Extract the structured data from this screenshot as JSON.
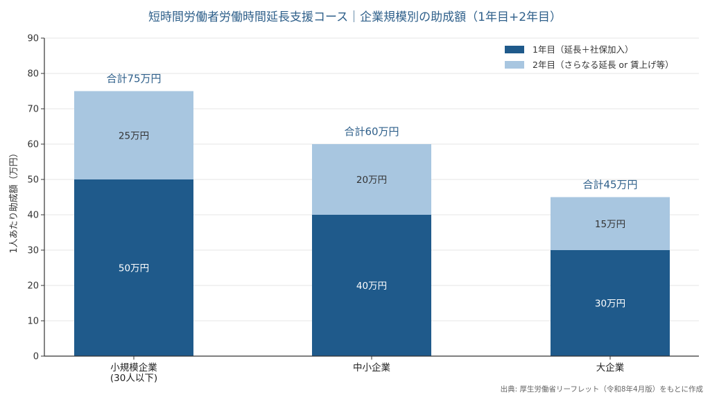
{
  "chart_data": {
    "type": "bar",
    "stacked": true,
    "title": "短時間労働者労働時間延長支援コース｜企業規模別の助成額（1年目+2年目）",
    "ylabel": "1人あたり助成額（万円）",
    "xlabel": "",
    "ylim": [
      0,
      90
    ],
    "yticks": [
      0,
      10,
      20,
      30,
      40,
      50,
      60,
      70,
      80,
      90
    ],
    "grid": true,
    "legend_position": "top-right",
    "categories": [
      [
        "小規模企業",
        "(30人以下)"
      ],
      [
        "中小企業"
      ],
      [
        "大企業"
      ]
    ],
    "series": [
      {
        "name": "1年目（延長＋社保加入）",
        "color": "#1f5a8b",
        "label_color": "#ffffff",
        "values": [
          50,
          40,
          30
        ],
        "labels": [
          "50万円",
          "40万円",
          "30万円"
        ]
      },
      {
        "name": "2年目（さらなる延長 or 賃上げ等）",
        "color": "#a8c6e0",
        "label_color": "#333333",
        "values": [
          25,
          20,
          15
        ],
        "labels": [
          "25万円",
          "20万円",
          "15万円"
        ]
      }
    ],
    "totals": [
      75,
      60,
      45
    ],
    "total_labels": [
      "合計75万円",
      "合計60万円",
      "合計45万円"
    ],
    "source": "出典: 厚生労働省リーフレット（令和8年4月版）をもとに作成",
    "colors": {
      "title": "#2e5f8a",
      "grid": "#e6e6e6",
      "axis": "#333333"
    }
  }
}
